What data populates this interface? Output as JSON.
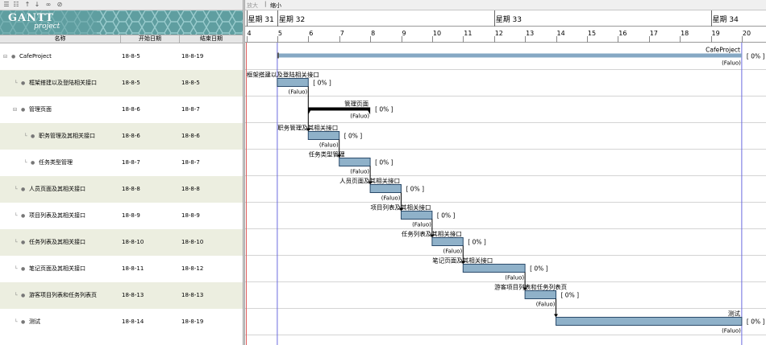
{
  "toolbar_left": {
    "icons": [
      "indent-icon",
      "outdent-icon",
      "up-arrow-icon",
      "down-arrow-icon",
      "link-icon",
      "unlink-icon"
    ]
  },
  "logo": {
    "text": "GANTT",
    "sub": "project"
  },
  "columns": {
    "name": "名称",
    "start": "开始日期",
    "end": "结束日期"
  },
  "tasks": [
    {
      "name": "CafeProject",
      "start": "18-8-5",
      "end": "18-8-19",
      "level": 0,
      "summary": true
    },
    {
      "name": "框架搭建以及登陆相关接口",
      "start": "18-8-5",
      "end": "18-8-5",
      "level": 1
    },
    {
      "name": "管理页面",
      "start": "18-8-6",
      "end": "18-8-7",
      "level": 1,
      "summary": true
    },
    {
      "name": "职务管理及其相关接口",
      "start": "18-8-6",
      "end": "18-8-6",
      "level": 2
    },
    {
      "name": "任务类型管理",
      "start": "18-8-7",
      "end": "18-8-7",
      "level": 2
    },
    {
      "name": "人员页面及其相关接口",
      "start": "18-8-8",
      "end": "18-8-8",
      "level": 1
    },
    {
      "name": "项目列表及其相关接口",
      "start": "18-8-9",
      "end": "18-8-9",
      "level": 1
    },
    {
      "name": "任务列表及其相关接口",
      "start": "18-8-10",
      "end": "18-8-10",
      "level": 1
    },
    {
      "name": "笔记页面及其相关接口",
      "start": "18-8-11",
      "end": "18-8-12",
      "level": 1
    },
    {
      "name": "游客项目列表和任务列表页",
      "start": "18-8-13",
      "end": "18-8-13",
      "level": 1
    },
    {
      "name": "测试",
      "start": "18-8-14",
      "end": "18-8-19",
      "level": 1
    }
  ],
  "timeline": {
    "zoom_in": "放大",
    "zoom_sep": "|",
    "zoom_out": "缩小",
    "weeks": [
      {
        "label": "星期 31",
        "day": 4
      },
      {
        "label": "星期 32",
        "day": 5
      },
      {
        "label": "星期 33",
        "day": 12
      },
      {
        "label": "星期 34",
        "day": 19
      }
    ],
    "days": [
      4,
      5,
      6,
      7,
      8,
      9,
      10,
      11,
      12,
      13,
      14,
      15,
      16,
      17,
      18,
      19,
      20
    ],
    "today_day": 4,
    "end_line_day": 20
  },
  "bars": [
    {
      "name": "CafeProject",
      "start": 5,
      "end": 20,
      "type": "project",
      "label": "CafeProject",
      "label_pos": "right-above",
      "percent": "[ 0% ]",
      "resource": "(Faluo)"
    },
    {
      "name": "框架搭建以及登陆相关接口",
      "start": 5,
      "end": 6,
      "type": "task",
      "label": "框架搭建以及登陆相关接口",
      "label_pos": "left-above",
      "percent": "[ 0% ]",
      "resource": "(Faluo)"
    },
    {
      "name": "管理页面",
      "start": 6,
      "end": 8,
      "type": "summary",
      "label": "管理页面",
      "label_pos": "right-above",
      "percent": "[ 0% ]",
      "resource": "(Faluo)"
    },
    {
      "name": "职务管理及其相关接口",
      "start": 6,
      "end": 7,
      "type": "task",
      "label": "职务管理及其相关接口",
      "label_pos": "left-above",
      "percent": "[ 0% ]",
      "resource": "(Faluo)"
    },
    {
      "name": "任务类型管理",
      "start": 7,
      "end": 8,
      "type": "task",
      "label": "任务类型管理",
      "label_pos": "left-above",
      "percent": "[ 0% ]",
      "resource": "(Faluo)"
    },
    {
      "name": "人员页面及其相关接口",
      "start": 8,
      "end": 9,
      "type": "task",
      "label": "人员页面及其相关接口",
      "label_pos": "left-above",
      "percent": "[ 0% ]",
      "resource": "(Faluo)"
    },
    {
      "name": "项目列表及其相关接口",
      "start": 9,
      "end": 10,
      "type": "task",
      "label": "项目列表及其相关接口",
      "label_pos": "left-above",
      "percent": "[ 0% ]",
      "resource": "(Faluo)"
    },
    {
      "name": "任务列表及其相关接口",
      "start": 10,
      "end": 11,
      "type": "task",
      "label": "任务列表及其相关接口",
      "label_pos": "left-above",
      "percent": "[ 0% ]",
      "resource": "(Faluo)"
    },
    {
      "name": "笔记页面及其相关接口",
      "start": 11,
      "end": 13,
      "type": "task",
      "label": "笔记页面及其相关接口",
      "label_pos": "left-above",
      "percent": "[ 0% ]",
      "resource": "(Faluo)"
    },
    {
      "name": "游客项目列表和任务列表页",
      "start": 13,
      "end": 14,
      "type": "task",
      "label": "游客项目列表和任务列表页",
      "label_pos": "left-above",
      "percent": "[ 0% ]",
      "resource": "(Faluo)"
    },
    {
      "name": "测试",
      "start": 14,
      "end": 20,
      "type": "task",
      "label": "测试",
      "label_pos": "right-above",
      "percent": "[ 0% ]",
      "resource": "(Faluo)"
    }
  ],
  "dependencies": [
    [
      1,
      3
    ],
    [
      3,
      4
    ],
    [
      4,
      5
    ],
    [
      5,
      6
    ],
    [
      6,
      7
    ],
    [
      7,
      8
    ],
    [
      8,
      9
    ],
    [
      9,
      10
    ]
  ],
  "colors": {
    "bar_fill": "#8fb1c9",
    "bar_border": "#2a4a6a",
    "project_bar": "#86a8c4",
    "summary_bar": "#000000",
    "row_alt": "#eceee0",
    "today_line": "#e06060",
    "end_line": "#6a6adf"
  }
}
